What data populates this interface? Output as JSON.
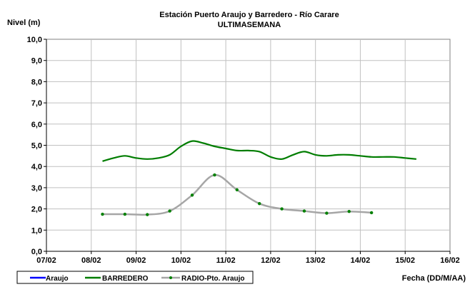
{
  "chart_data": {
    "type": "line",
    "title": "Estación Puerto Araujo y Barredero - Río Carare",
    "subtitle": "ULTIMASEMANA",
    "ylabel": "Nivel (m)",
    "xlabel": "Fecha (DD/M/AA)",
    "ylim": [
      0,
      10
    ],
    "yticks": [
      "0,0",
      "1,0",
      "2,0",
      "3,0",
      "4,0",
      "5,0",
      "6,0",
      "7,0",
      "8,0",
      "9,0",
      "10,0"
    ],
    "xticks": [
      "07/02",
      "08/02",
      "09/02",
      "10/02",
      "11/02",
      "12/02",
      "13/02",
      "14/02",
      "15/02",
      "16/02"
    ],
    "grid": true,
    "legend": "bottom-left",
    "series": [
      {
        "name": "Araujo",
        "color": "#0000ff",
        "marker": false,
        "x": [],
        "y": []
      },
      {
        "name": "BARREDERO",
        "color": "#007d00",
        "marker": false,
        "x": [
          1.25,
          1.5,
          1.75,
          2.0,
          2.25,
          2.5,
          2.75,
          3.0,
          3.25,
          3.5,
          3.75,
          4.0,
          4.25,
          4.5,
          4.75,
          5.0,
          5.25,
          5.5,
          5.75,
          6.0,
          6.25,
          6.5,
          6.75,
          7.0,
          7.25,
          7.5,
          7.75,
          8.0,
          8.25
        ],
        "y": [
          4.25,
          4.4,
          4.5,
          4.4,
          4.35,
          4.4,
          4.55,
          4.95,
          5.2,
          5.1,
          4.95,
          4.85,
          4.75,
          4.75,
          4.7,
          4.45,
          4.35,
          4.55,
          4.7,
          4.55,
          4.5,
          4.55,
          4.55,
          4.5,
          4.45,
          4.45,
          4.45,
          4.4,
          4.35
        ]
      },
      {
        "name": "RADIO-Pto. Araujo",
        "color": "#a6a6a6",
        "marker": true,
        "markerColor": "#008000",
        "x": [
          1.25,
          1.75,
          2.25,
          2.75,
          3.25,
          3.75,
          4.25,
          4.75,
          5.25,
          5.75,
          6.25,
          6.75,
          7.25
        ],
        "y": [
          1.75,
          1.75,
          1.73,
          1.9,
          2.65,
          3.6,
          2.9,
          2.25,
          2.0,
          1.9,
          1.8,
          1.88,
          1.82
        ]
      }
    ]
  }
}
